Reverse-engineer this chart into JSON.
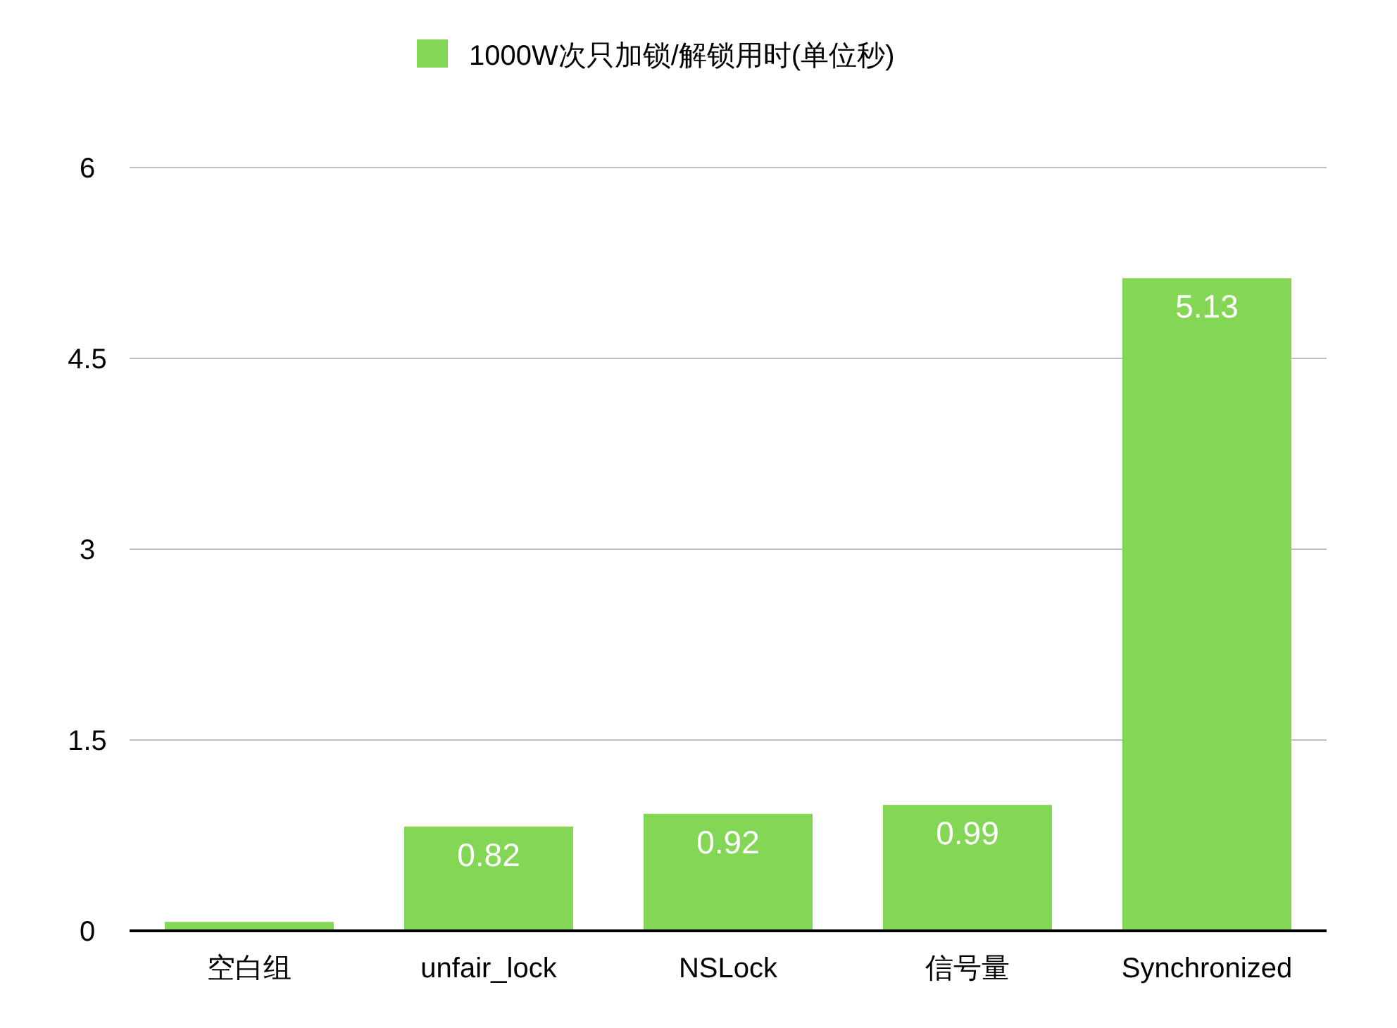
{
  "chart_data": {
    "type": "bar",
    "categories": [
      "空白组",
      "unfair_lock",
      "NSLock",
      "信号量",
      "Synchronized"
    ],
    "series": [
      {
        "name": "1000W次只加锁/解锁用时(单位秒)",
        "color": "#84d655",
        "values": [
          0.07,
          0.82,
          0.92,
          0.99,
          5.13
        ],
        "value_labels": [
          null,
          "0.82",
          "0.92",
          "0.99",
          "5.13"
        ]
      }
    ],
    "ylim": [
      0,
      6
    ],
    "yticks": [
      0,
      1.5,
      3,
      4.5,
      6
    ],
    "grid": "y",
    "legend": "top"
  }
}
